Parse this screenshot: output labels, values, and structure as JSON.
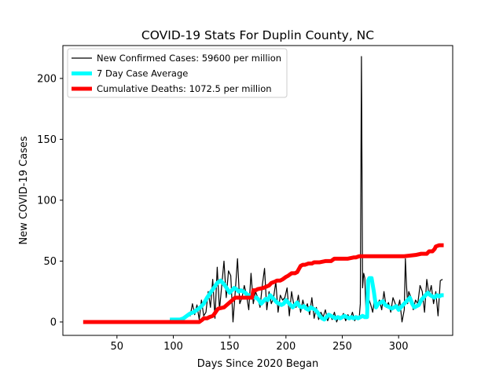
{
  "chart_data": {
    "type": "line",
    "title": "COVID-19 Stats For Duplin County, NC",
    "xlabel": "Days Since 2020 Began",
    "ylabel": "New COVID-19 Cases",
    "xlim": [
      2,
      348
    ],
    "ylim": [
      -11,
      227
    ],
    "xticks": [
      50,
      100,
      150,
      200,
      250,
      300,
      350
    ],
    "yticks": [
      0,
      50,
      100,
      150,
      200
    ],
    "grid": false,
    "legend_position": "top-left",
    "series": [
      {
        "name": "New Confirmed Cases: 59600 per million",
        "color": "#000000",
        "x": [
          97,
          99,
          101,
          103,
          105,
          107,
          109,
          111,
          113,
          115,
          117,
          119,
          121,
          123,
          125,
          127,
          129,
          131,
          133,
          135,
          137,
          139,
          141,
          143,
          145,
          147,
          149,
          151,
          153,
          155,
          157,
          159,
          161,
          163,
          165,
          167,
          169,
          171,
          173,
          175,
          177,
          179,
          181,
          183,
          185,
          187,
          189,
          191,
          193,
          195,
          197,
          199,
          201,
          203,
          205,
          207,
          209,
          211,
          213,
          215,
          217,
          219,
          221,
          223,
          225,
          227,
          229,
          231,
          233,
          235,
          237,
          239,
          241,
          243,
          245,
          247,
          249,
          251,
          253,
          255,
          257,
          259,
          261,
          263,
          265,
          266,
          267,
          268,
          269,
          270,
          271,
          273,
          275,
          277,
          279,
          281,
          283,
          285,
          287,
          289,
          291,
          293,
          295,
          297,
          299,
          301,
          303,
          305,
          306,
          307,
          308,
          309,
          311,
          313,
          315,
          317,
          319,
          321,
          323,
          325,
          327,
          329,
          331,
          333,
          335,
          337,
          339
        ],
        "y": [
          2,
          2,
          2,
          2,
          2,
          1,
          4,
          3,
          7,
          5,
          15,
          6,
          14,
          2,
          18,
          5,
          8,
          25,
          12,
          35,
          3,
          45,
          10,
          30,
          50,
          20,
          42,
          38,
          0,
          25,
          52,
          15,
          20,
          30,
          22,
          10,
          40,
          15,
          25,
          20,
          12,
          30,
          44,
          10,
          25,
          15,
          20,
          33,
          8,
          22,
          18,
          20,
          28,
          5,
          25,
          14,
          12,
          22,
          8,
          18,
          10,
          15,
          6,
          20,
          3,
          12,
          2,
          8,
          4,
          10,
          1,
          6,
          2,
          8,
          0,
          5,
          3,
          7,
          1,
          6,
          2,
          8,
          1,
          5,
          3,
          15,
          218,
          28,
          40,
          36,
          10,
          20,
          15,
          8,
          22,
          14,
          18,
          10,
          25,
          12,
          16,
          8,
          20,
          15,
          10,
          18,
          0,
          10,
          52,
          30,
          15,
          25,
          20,
          10,
          18,
          15,
          30,
          25,
          8,
          35,
          22,
          30,
          15,
          25,
          5,
          34,
          35
        ]
      },
      {
        "name": "7 Day Case Average",
        "color": "#00ffff",
        "x": [
          97,
          100,
          103,
          106,
          109,
          112,
          115,
          118,
          121,
          124,
          127,
          130,
          133,
          136,
          139,
          142,
          145,
          148,
          150,
          152,
          154,
          156,
          158,
          160,
          162,
          164,
          166,
          168,
          170,
          172,
          174,
          176,
          178,
          180,
          182,
          184,
          186,
          188,
          190,
          192,
          194,
          196,
          198,
          200,
          202,
          204,
          206,
          208,
          210,
          212,
          214,
          216,
          218,
          220,
          222,
          224,
          226,
          228,
          230,
          232,
          234,
          236,
          238,
          240,
          242,
          244,
          246,
          248,
          250,
          252,
          254,
          256,
          258,
          260,
          262,
          264,
          266,
          268,
          270,
          272,
          273,
          274,
          276,
          278,
          280,
          282,
          284,
          286,
          288,
          290,
          292,
          294,
          296,
          298,
          300,
          302,
          304,
          306,
          308,
          310,
          312,
          314,
          316,
          318,
          320,
          322,
          324,
          326,
          328,
          330,
          332,
          334,
          336,
          338,
          340
        ],
        "y": [
          2,
          2,
          2,
          2,
          3,
          5,
          7,
          8,
          10,
          12,
          15,
          20,
          24,
          28,
          32,
          34,
          31,
          27,
          24,
          26,
          28,
          27,
          25,
          26,
          25,
          24,
          22,
          22,
          21,
          20,
          20,
          18,
          15,
          17,
          19,
          18,
          22,
          20,
          18,
          16,
          15,
          14,
          15,
          18,
          16,
          14,
          12,
          14,
          16,
          13,
          12,
          13,
          11,
          10,
          12,
          11,
          10,
          8,
          5,
          3,
          2,
          4,
          6,
          5,
          4,
          3,
          4,
          3,
          4,
          5,
          4,
          3,
          4,
          3,
          4,
          3,
          4,
          5,
          4,
          4,
          34,
          36,
          36,
          25,
          12,
          15,
          16,
          17,
          14,
          13,
          12,
          11,
          12,
          13,
          10,
          12,
          14,
          16,
          18,
          20,
          15,
          12,
          13,
          14,
          18,
          20,
          22,
          24,
          22,
          21,
          20,
          22,
          21,
          22,
          22
        ]
      },
      {
        "name": "Cumulative Deaths: 1072.5 per million",
        "color": "#ff0000",
        "x": [
          20,
          100,
          123,
          126,
          127,
          130,
          132,
          135,
          136,
          139,
          140,
          145,
          150,
          155,
          160,
          170,
          171,
          173,
          175,
          180,
          185,
          187,
          190,
          192,
          195,
          197,
          200,
          202,
          205,
          208,
          210,
          213,
          215,
          217,
          220,
          223,
          225,
          228,
          230,
          235,
          240,
          243,
          245,
          250,
          255,
          260,
          262,
          265,
          270,
          275,
          280,
          290,
          300,
          305,
          315,
          320,
          322,
          324,
          325,
          326,
          327,
          330,
          332,
          333,
          336,
          340
        ],
        "y": [
          0,
          0,
          0,
          2,
          3,
          3,
          4,
          5,
          6,
          10,
          11,
          12,
          16,
          20,
          20,
          20,
          26,
          26,
          27,
          28,
          30,
          32,
          33,
          34,
          34,
          35,
          37,
          38,
          40,
          40,
          41,
          46,
          47,
          47,
          48,
          48,
          49,
          49,
          49,
          50,
          50,
          52,
          52,
          52,
          52,
          53,
          53,
          54,
          54,
          54,
          54,
          54,
          54,
          54,
          55,
          56,
          56,
          56,
          56,
          57,
          58,
          58,
          60,
          62,
          63,
          63
        ]
      }
    ]
  }
}
